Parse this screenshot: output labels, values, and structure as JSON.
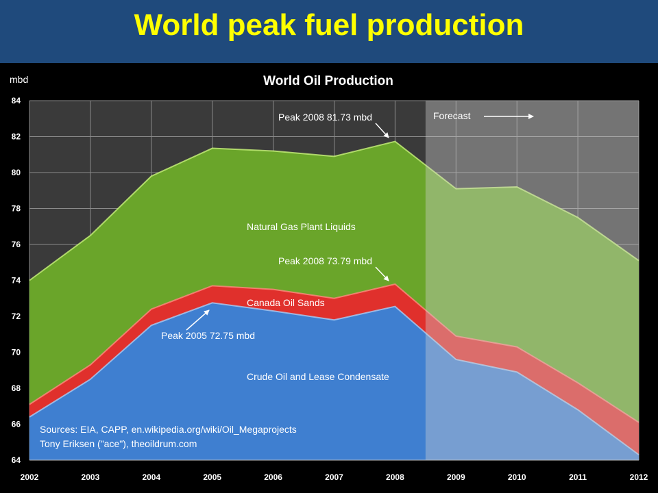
{
  "slide": {
    "title": "World peak fuel production"
  },
  "chart_data": {
    "type": "area",
    "stacked": true,
    "title": "World Oil Production",
    "ylabel": "mbd",
    "xlabel": "",
    "x": [
      2002,
      2003,
      2004,
      2005,
      2006,
      2007,
      2008,
      2009,
      2010,
      2011,
      2012
    ],
    "ylim": [
      64,
      84
    ],
    "yticks": [
      64,
      66,
      68,
      70,
      72,
      74,
      76,
      78,
      80,
      82,
      84
    ],
    "grid": true,
    "forecast_start": 2008.5,
    "colors": {
      "crude": "#3f7fd0",
      "sands": "#e0302c",
      "ngl": "#6aa52a",
      "forecast_overlay": "rgba(210,210,210,0.38)",
      "plot_bg": "#3a3a3a",
      "gridline": "#8a8a8a"
    },
    "series": [
      {
        "name": "Crude Oil and Lease Condensate",
        "top_values": [
          66.4,
          68.5,
          71.5,
          72.75,
          72.3,
          71.8,
          72.55,
          69.6,
          68.9,
          66.8,
          64.3
        ]
      },
      {
        "name": "Canada Oil Sands",
        "top_values": [
          67.1,
          69.3,
          72.4,
          73.7,
          73.5,
          73.0,
          73.79,
          70.9,
          70.3,
          68.3,
          66.1
        ]
      },
      {
        "name": "Natural Gas Plant Liquids",
        "top_values": [
          74.0,
          76.5,
          79.8,
          81.35,
          81.2,
          80.9,
          81.73,
          79.1,
          79.2,
          77.5,
          75.1
        ]
      }
    ],
    "annotations": {
      "peak_total": "Peak 2008 81.73 mbd",
      "peak_with_sands": "Peak 2008 73.79 mbd",
      "peak_crude": "Peak 2005 72.75 mbd",
      "forecast": "Forecast"
    },
    "sources": [
      "Sources: EIA, CAPP, en.wikipedia.org/wiki/Oil_Megaprojects",
      "Tony Eriksen (\"ace\"), theoildrum.com"
    ]
  }
}
